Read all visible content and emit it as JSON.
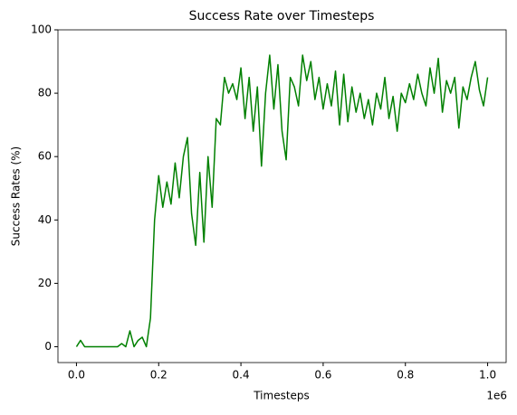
{
  "chart_data": {
    "type": "line",
    "title": "Success Rate over Timesteps",
    "xlabel": "Timesteps",
    "ylabel": "Success Rates (%)",
    "x_offset_label": "1e6",
    "x": [
      0,
      10000,
      20000,
      30000,
      40000,
      50000,
      60000,
      70000,
      80000,
      90000,
      100000,
      110000,
      120000,
      130000,
      140000,
      150000,
      160000,
      170000,
      180000,
      190000,
      200000,
      210000,
      220000,
      230000,
      240000,
      250000,
      260000,
      270000,
      280000,
      290000,
      300000,
      310000,
      320000,
      330000,
      340000,
      350000,
      360000,
      370000,
      380000,
      390000,
      400000,
      410000,
      420000,
      430000,
      440000,
      450000,
      460000,
      470000,
      480000,
      490000,
      500000,
      510000,
      520000,
      530000,
      540000,
      550000,
      560000,
      570000,
      580000,
      590000,
      600000,
      610000,
      620000,
      630000,
      640000,
      650000,
      660000,
      670000,
      680000,
      690000,
      700000,
      710000,
      720000,
      730000,
      740000,
      750000,
      760000,
      770000,
      780000,
      790000,
      800000,
      810000,
      820000,
      830000,
      840000,
      850000,
      860000,
      870000,
      880000,
      890000,
      900000,
      910000,
      920000,
      930000,
      940000,
      950000,
      960000,
      970000,
      980000,
      990000,
      1000000
    ],
    "series": [
      {
        "name": "Success Rate",
        "color": "#008000",
        "values": [
          0,
          2,
          0,
          0,
          0,
          0,
          0,
          0,
          0,
          0,
          0,
          1,
          0,
          5,
          0,
          2,
          3,
          0,
          9,
          40,
          54,
          44,
          52,
          45,
          58,
          47,
          60,
          66,
          42,
          32,
          55,
          33,
          60,
          44,
          72,
          70,
          85,
          80,
          83,
          78,
          88,
          72,
          85,
          68,
          82,
          57,
          80,
          92,
          75,
          89,
          68,
          59,
          85,
          82,
          76,
          92,
          84,
          90,
          78,
          85,
          75,
          83,
          76,
          87,
          70,
          86,
          71,
          82,
          74,
          80,
          72,
          78,
          70,
          80,
          75,
          85,
          72,
          79,
          68,
          80,
          77,
          83,
          78,
          86,
          80,
          76,
          88,
          80,
          91,
          74,
          84,
          80,
          85,
          69,
          82,
          78,
          85,
          90,
          81,
          76,
          85
        ]
      }
    ],
    "xlim": [
      -45000,
      1045000
    ],
    "ylim": [
      -5,
      100
    ],
    "xticks": [
      {
        "value": 0,
        "label": "0.0"
      },
      {
        "value": 200000,
        "label": "0.2"
      },
      {
        "value": 400000,
        "label": "0.4"
      },
      {
        "value": 600000,
        "label": "0.6"
      },
      {
        "value": 800000,
        "label": "0.8"
      },
      {
        "value": 1000000,
        "label": "1.0"
      }
    ],
    "yticks": [
      0,
      20,
      40,
      60,
      80,
      100
    ]
  }
}
